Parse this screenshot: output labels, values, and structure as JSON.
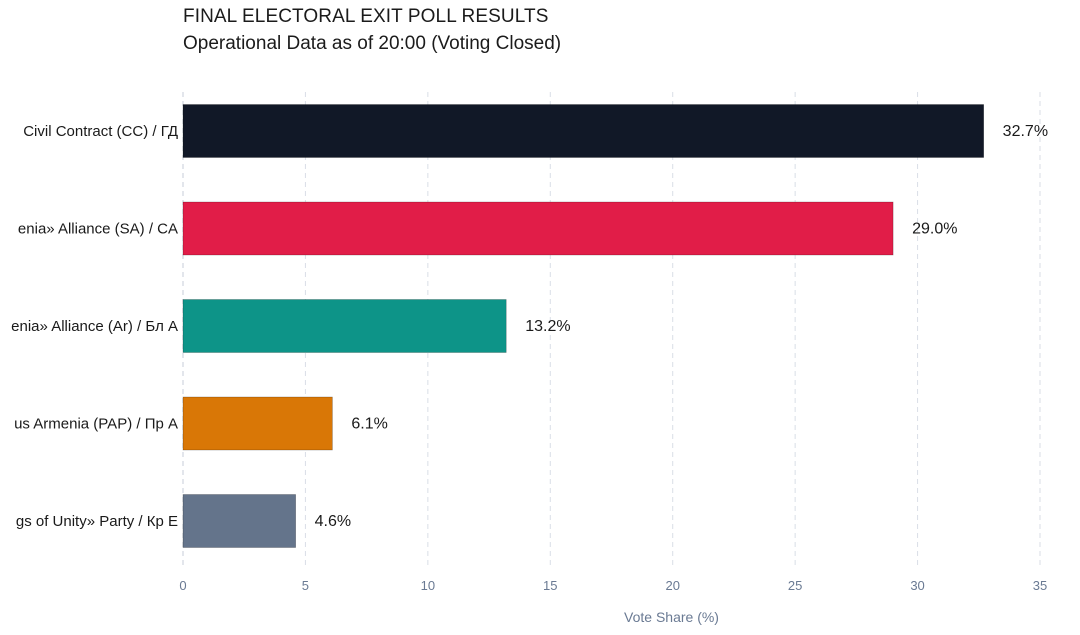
{
  "chart_data": {
    "type": "bar",
    "orientation": "horizontal",
    "title": "FINAL ELECTORAL EXIT POLL RESULTS",
    "subtitle": "Operational Data as of 20:00 (Voting Closed)",
    "xlabel": "Vote Share (%)",
    "ylabel": "",
    "xlim": [
      0,
      35
    ],
    "xticks": [
      0,
      5,
      10,
      15,
      20,
      25,
      30,
      35
    ],
    "grid": "vertical dashed",
    "categories": [
      "Civil Contract (CC) / ГД",
      "enia» Alliance (SA) / CA",
      "enia» Alliance (Ar) / Бл A",
      "us Armenia (PAP) / Пр A",
      "gs of Unity» Party / Кр Е"
    ],
    "values": [
      32.7,
      29.0,
      13.2,
      6.1,
      4.6
    ],
    "value_labels": [
      "32.7%",
      "29.0%",
      "13.2%",
      "6.1%",
      "4.6%"
    ],
    "colors": [
      "#111827",
      "#e11d48",
      "#0d9488",
      "#d97706",
      "#64748b"
    ]
  }
}
